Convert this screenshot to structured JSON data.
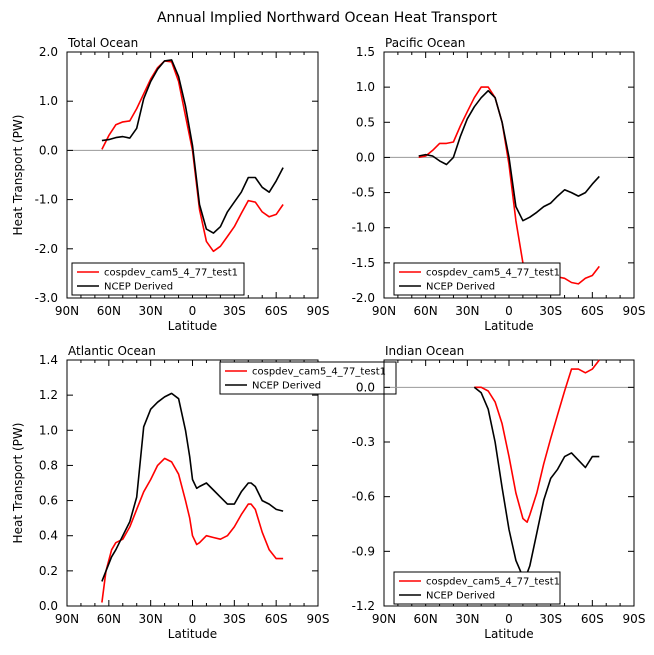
{
  "figure": {
    "title": "Annual Implied Northward Ocean Heat Transport"
  },
  "colors": {
    "model": "#ff0000",
    "obs": "#000000",
    "zero_line": "#999999"
  },
  "chart_data": [
    {
      "type": "line",
      "title": "Total Ocean",
      "xlabel": "Latitude",
      "ylabel": "Heat Transport (PW)",
      "xlim": [
        90,
        -90
      ],
      "x_ticks": [
        90,
        60,
        30,
        0,
        -30,
        -60,
        -90
      ],
      "x_tick_labels": [
        "90N",
        "60N",
        "30N",
        "0",
        "30S",
        "60S",
        "90S"
      ],
      "ylim": [
        -3.0,
        2.0
      ],
      "y_ticks": [
        -3.0,
        -2.0,
        -1.0,
        0.0,
        1.0,
        2.0
      ],
      "y_tick_labels": [
        "-3.0",
        "-2.0",
        "-1.0",
        "0.0",
        "1.0",
        "2.0"
      ],
      "zero_line": true,
      "legend_position": "bottom-left",
      "series": [
        {
          "name": "cospdev_cam5_4_77_test1",
          "color_key": "model",
          "x": [
            65,
            60,
            55,
            50,
            45,
            40,
            35,
            30,
            25,
            20,
            15,
            10,
            5,
            0,
            -5,
            -10,
            -15,
            -20,
            -25,
            -30,
            -35,
            -40,
            -45,
            -50,
            -55,
            -60,
            -65
          ],
          "y": [
            0.02,
            0.3,
            0.52,
            0.58,
            0.6,
            0.85,
            1.15,
            1.45,
            1.68,
            1.82,
            1.8,
            1.4,
            0.7,
            0.0,
            -1.2,
            -1.85,
            -2.05,
            -1.95,
            -1.75,
            -1.55,
            -1.28,
            -1.02,
            -1.05,
            -1.25,
            -1.35,
            -1.3,
            -1.1
          ]
        },
        {
          "name": "NCEP Derived",
          "color_key": "obs",
          "x": [
            65,
            60,
            55,
            50,
            45,
            40,
            35,
            30,
            25,
            20,
            15,
            10,
            5,
            0,
            -5,
            -10,
            -15,
            -20,
            -25,
            -30,
            -35,
            -40,
            -45,
            -50,
            -55,
            -60,
            -65
          ],
          "y": [
            0.2,
            0.22,
            0.26,
            0.28,
            0.25,
            0.45,
            1.05,
            1.4,
            1.65,
            1.82,
            1.84,
            1.5,
            0.9,
            0.1,
            -1.1,
            -1.6,
            -1.68,
            -1.55,
            -1.25,
            -1.05,
            -0.85,
            -0.55,
            -0.55,
            -0.75,
            -0.85,
            -0.62,
            -0.35
          ]
        }
      ]
    },
    {
      "type": "line",
      "title": "Pacific Ocean",
      "xlabel": "Latitude",
      "ylabel": "",
      "xlim": [
        90,
        -90
      ],
      "x_ticks": [
        90,
        60,
        30,
        0,
        -30,
        -60,
        -90
      ],
      "x_tick_labels": [
        "90N",
        "60N",
        "30N",
        "0",
        "30S",
        "60S",
        "90S"
      ],
      "ylim": [
        -2.0,
        1.5
      ],
      "y_ticks": [
        -2.0,
        -1.5,
        -1.0,
        -0.5,
        0.0,
        0.5,
        1.0,
        1.5
      ],
      "y_tick_labels": [
        "-2.0",
        "-1.5",
        "-1.0",
        "-0.5",
        "0.0",
        "0.5",
        "1.0",
        "1.5"
      ],
      "zero_line": true,
      "legend_position": "bottom-left",
      "series": [
        {
          "name": "cospdev_cam5_4_77_test1",
          "color_key": "model",
          "x": [
            65,
            60,
            55,
            50,
            45,
            40,
            35,
            30,
            25,
            20,
            15,
            10,
            5,
            0,
            -5,
            -10,
            -15,
            -20,
            -25,
            -30,
            -35,
            -40,
            -45,
            -50,
            -55,
            -60,
            -65
          ],
          "y": [
            0.0,
            0.02,
            0.1,
            0.2,
            0.2,
            0.22,
            0.45,
            0.65,
            0.85,
            1.0,
            1.0,
            0.85,
            0.5,
            -0.1,
            -0.9,
            -1.5,
            -1.68,
            -1.72,
            -1.75,
            -1.75,
            -1.7,
            -1.72,
            -1.78,
            -1.8,
            -1.72,
            -1.68,
            -1.55
          ]
        },
        {
          "name": "NCEP Derived",
          "color_key": "obs",
          "x": [
            65,
            60,
            55,
            50,
            45,
            40,
            35,
            30,
            25,
            20,
            15,
            10,
            5,
            0,
            -5,
            -10,
            -15,
            -20,
            -25,
            -30,
            -35,
            -40,
            -45,
            -50,
            -55,
            -60,
            -65
          ],
          "y": [
            0.02,
            0.04,
            0.02,
            -0.05,
            -0.1,
            0.0,
            0.3,
            0.55,
            0.72,
            0.85,
            0.95,
            0.85,
            0.5,
            0.0,
            -0.7,
            -0.9,
            -0.85,
            -0.78,
            -0.7,
            -0.65,
            -0.55,
            -0.46,
            -0.5,
            -0.55,
            -0.5,
            -0.38,
            -0.27
          ]
        }
      ]
    },
    {
      "type": "line",
      "title": "Atlantic Ocean",
      "xlabel": "Latitude",
      "ylabel": "Heat Transport (PW)",
      "xlim": [
        90,
        -90
      ],
      "x_ticks": [
        90,
        60,
        30,
        0,
        -30,
        -60,
        -90
      ],
      "x_tick_labels": [
        "90N",
        "60N",
        "30N",
        "0",
        "30S",
        "60S",
        "90S"
      ],
      "ylim": [
        0.0,
        1.4
      ],
      "y_ticks": [
        0.0,
        0.2,
        0.4,
        0.6,
        0.8,
        1.0,
        1.2,
        1.4
      ],
      "y_tick_labels": [
        "0.0",
        "0.2",
        "0.4",
        "0.6",
        "0.8",
        "1.0",
        "1.2",
        "1.4"
      ],
      "zero_line": false,
      "legend_position": "top-right",
      "series": [
        {
          "name": "cospdev_cam5_4_77_test1",
          "color_key": "model",
          "x": [
            65,
            62,
            58,
            55,
            50,
            45,
            40,
            35,
            30,
            25,
            20,
            15,
            10,
            5,
            2,
            0,
            -3,
            -5,
            -10,
            -15,
            -20,
            -25,
            -30,
            -35,
            -40,
            -42,
            -45,
            -50,
            -55,
            -60,
            -65
          ],
          "y": [
            0.02,
            0.2,
            0.32,
            0.36,
            0.38,
            0.45,
            0.55,
            0.65,
            0.72,
            0.8,
            0.84,
            0.82,
            0.75,
            0.6,
            0.5,
            0.4,
            0.35,
            0.36,
            0.4,
            0.39,
            0.38,
            0.4,
            0.45,
            0.52,
            0.58,
            0.58,
            0.55,
            0.42,
            0.32,
            0.27,
            0.27
          ]
        },
        {
          "name": "NCEP Derived",
          "color_key": "obs",
          "x": [
            65,
            62,
            58,
            55,
            50,
            45,
            40,
            35,
            30,
            25,
            20,
            15,
            10,
            5,
            2,
            0,
            -3,
            -5,
            -10,
            -15,
            -20,
            -25,
            -30,
            -35,
            -40,
            -42,
            -45,
            -50,
            -55,
            -60,
            -65
          ],
          "y": [
            0.14,
            0.2,
            0.28,
            0.32,
            0.4,
            0.48,
            0.62,
            1.02,
            1.12,
            1.16,
            1.19,
            1.21,
            1.18,
            1.0,
            0.85,
            0.72,
            0.67,
            0.68,
            0.7,
            0.66,
            0.62,
            0.58,
            0.58,
            0.65,
            0.7,
            0.7,
            0.68,
            0.6,
            0.58,
            0.55,
            0.54
          ]
        }
      ]
    },
    {
      "type": "line",
      "title": "Indian Ocean",
      "xlabel": "Latitude",
      "ylabel": "",
      "xlim": [
        90,
        -90
      ],
      "x_ticks": [
        90,
        60,
        30,
        0,
        -30,
        -60,
        -90
      ],
      "x_tick_labels": [
        "90N",
        "60N",
        "30N",
        "0",
        "30S",
        "60S",
        "90S"
      ],
      "ylim": [
        -1.2,
        0.15
      ],
      "y_ticks": [
        -1.2,
        -0.9,
        -0.6,
        -0.3,
        0.0
      ],
      "y_tick_labels": [
        "-1.2",
        "-0.9",
        "-0.6",
        "-0.3",
        "0.0"
      ],
      "zero_line": true,
      "legend_position": "bottom-left",
      "series": [
        {
          "name": "cospdev_cam5_4_77_test1",
          "color_key": "model",
          "x": [
            25,
            20,
            15,
            10,
            5,
            0,
            -5,
            -10,
            -13,
            -15,
            -20,
            -25,
            -30,
            -35,
            -40,
            -45,
            -50,
            -55,
            -60,
            -65
          ],
          "y": [
            0.0,
            0.0,
            -0.02,
            -0.08,
            -0.2,
            -0.38,
            -0.58,
            -0.72,
            -0.74,
            -0.7,
            -0.58,
            -0.42,
            -0.28,
            -0.15,
            -0.02,
            0.1,
            0.1,
            0.08,
            0.1,
            0.15
          ]
        },
        {
          "name": "NCEP Derived",
          "color_key": "obs",
          "x": [
            25,
            20,
            15,
            10,
            5,
            0,
            -5,
            -10,
            -13,
            -15,
            -20,
            -25,
            -30,
            -35,
            -40,
            -45,
            -50,
            -55,
            -60,
            -65
          ],
          "y": [
            0.0,
            -0.03,
            -0.12,
            -0.3,
            -0.55,
            -0.78,
            -0.95,
            -1.04,
            -1.02,
            -0.98,
            -0.8,
            -0.62,
            -0.5,
            -0.45,
            -0.38,
            -0.36,
            -0.4,
            -0.44,
            -0.38,
            -0.38
          ]
        }
      ]
    }
  ]
}
